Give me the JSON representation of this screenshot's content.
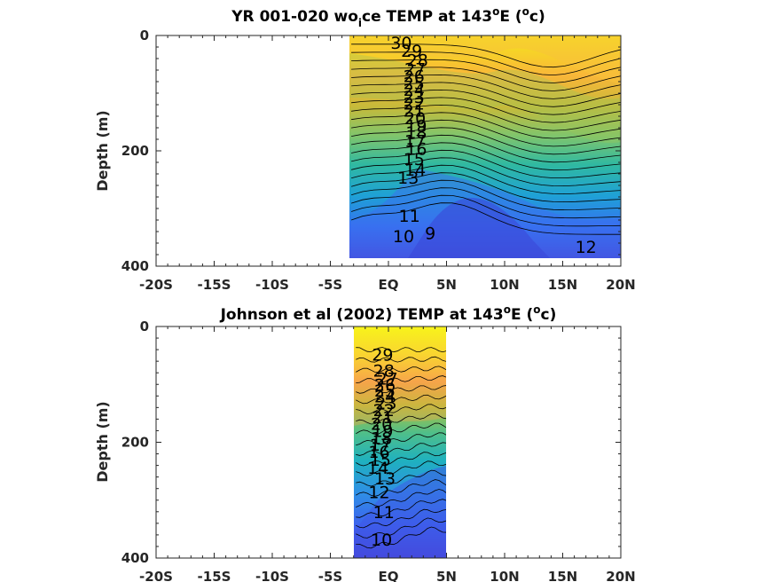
{
  "chart_data": [
    {
      "type": "heatmap",
      "title_main": "YR 001-020 wo",
      "title_sub": "i",
      "title_rest": "ce TEMP at 143",
      "title_sup": "o",
      "title_end": "E (",
      "title_sup2": "o",
      "title_tail": "c)",
      "ylabel": "Depth (m)",
      "xlabel": "",
      "xlim": [
        -20,
        20
      ],
      "ylim": [
        0,
        400
      ],
      "y_reversed": true,
      "x_ticks": [
        -20,
        -15,
        -10,
        -5,
        0,
        5,
        10,
        15,
        20
      ],
      "x_tick_labels": [
        "-20S",
        "-15S",
        "-10S",
        "-5S",
        "EQ",
        "5N",
        "10N",
        "15N",
        "20N"
      ],
      "y_ticks": [
        0,
        200,
        400
      ],
      "y_tick_labels": [
        "0",
        "200",
        "400"
      ],
      "data_extent": {
        "lat": [
          -3.2,
          20
        ],
        "depth": [
          0,
          385
        ]
      },
      "contour_levels": [
        9,
        10,
        11,
        12,
        13,
        14,
        15,
        16,
        17,
        18,
        19,
        20,
        21,
        22,
        23,
        24,
        25,
        26,
        27,
        28,
        29,
        30
      ],
      "contour_labels": [
        {
          "text": "30",
          "lat": 1.1,
          "depth": 12
        },
        {
          "text": "29",
          "lat": 2.0,
          "depth": 26
        },
        {
          "text": "28",
          "lat": 2.5,
          "depth": 42
        },
        {
          "text": "27",
          "lat": 2.3,
          "depth": 58
        },
        {
          "text": "26",
          "lat": 2.2,
          "depth": 70
        },
        {
          "text": "25",
          "lat": 2.2,
          "depth": 82
        },
        {
          "text": "24",
          "lat": 2.2,
          "depth": 94
        },
        {
          "text": "23",
          "lat": 2.2,
          "depth": 106
        },
        {
          "text": "22",
          "lat": 2.2,
          "depth": 118
        },
        {
          "text": "21",
          "lat": 2.2,
          "depth": 130
        },
        {
          "text": "20",
          "lat": 2.3,
          "depth": 143
        },
        {
          "text": "19",
          "lat": 2.4,
          "depth": 156
        },
        {
          "text": "18",
          "lat": 2.4,
          "depth": 168
        },
        {
          "text": "17",
          "lat": 2.3,
          "depth": 182
        },
        {
          "text": "16",
          "lat": 2.4,
          "depth": 196
        },
        {
          "text": "15",
          "lat": 2.2,
          "depth": 214
        },
        {
          "text": "14",
          "lat": 2.3,
          "depth": 232
        },
        {
          "text": "13",
          "lat": 1.7,
          "depth": 246
        },
        {
          "text": "11",
          "lat": 1.8,
          "depth": 312
        },
        {
          "text": "10",
          "lat": 1.3,
          "depth": 348
        },
        {
          "text": "9",
          "lat": 3.6,
          "depth": 342
        },
        {
          "text": "12",
          "lat": 17.0,
          "depth": 366
        }
      ]
    },
    {
      "type": "heatmap",
      "title_main": "Johnson et al (2002) TEMP at 143",
      "title_sup": "o",
      "title_end": "E (",
      "title_sup2": "o",
      "title_tail": "c)",
      "ylabel": "Depth (m)",
      "xlabel": "",
      "xlim": [
        -20,
        20
      ],
      "ylim": [
        0,
        400
      ],
      "y_reversed": true,
      "x_ticks": [
        -20,
        -15,
        -10,
        -5,
        0,
        5,
        10,
        15,
        20
      ],
      "x_tick_labels": [
        "-20S",
        "-15S",
        "-10S",
        "-5S",
        "EQ",
        "5N",
        "10N",
        "15N",
        "20N"
      ],
      "y_ticks": [
        0,
        200,
        400
      ],
      "y_tick_labels": [
        "0",
        "200",
        "400"
      ],
      "data_extent": {
        "lat": [
          -2.8,
          5
        ],
        "depth": [
          0,
          400
        ]
      },
      "contour_levels": [
        10,
        11,
        12,
        13,
        14,
        15,
        16,
        17,
        18,
        19,
        20,
        21,
        22,
        23,
        24,
        25,
        26,
        27,
        28,
        29
      ],
      "contour_labels": [
        {
          "text": "29",
          "lat": -0.5,
          "depth": 48
        },
        {
          "text": "28",
          "lat": -0.4,
          "depth": 76
        },
        {
          "text": "27",
          "lat": -0.1,
          "depth": 90
        },
        {
          "text": "26",
          "lat": -0.3,
          "depth": 100
        },
        {
          "text": "25",
          "lat": -0.3,
          "depth": 110
        },
        {
          "text": "24",
          "lat": -0.3,
          "depth": 120
        },
        {
          "text": "23",
          "lat": -0.2,
          "depth": 132
        },
        {
          "text": "22",
          "lat": -0.4,
          "depth": 144
        },
        {
          "text": "21",
          "lat": -0.5,
          "depth": 156
        },
        {
          "text": "20",
          "lat": -0.6,
          "depth": 168
        },
        {
          "text": "19",
          "lat": -0.5,
          "depth": 180
        },
        {
          "text": "18",
          "lat": -0.6,
          "depth": 192
        },
        {
          "text": "17",
          "lat": -0.7,
          "depth": 204
        },
        {
          "text": "16",
          "lat": -0.8,
          "depth": 216
        },
        {
          "text": "15",
          "lat": -0.7,
          "depth": 230
        },
        {
          "text": "14",
          "lat": -0.9,
          "depth": 244
        },
        {
          "text": "13",
          "lat": -0.3,
          "depth": 262
        },
        {
          "text": "12",
          "lat": -0.8,
          "depth": 286
        },
        {
          "text": "11",
          "lat": -0.4,
          "depth": 320
        },
        {
          "text": "10",
          "lat": -0.6,
          "depth": 368
        }
      ]
    }
  ]
}
